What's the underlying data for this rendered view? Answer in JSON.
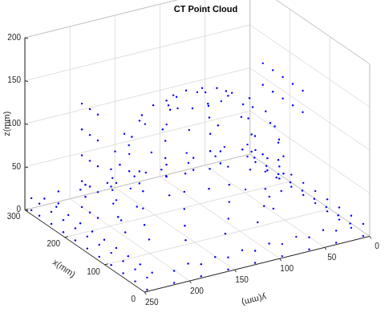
{
  "chart_data": {
    "type": "scatter3d",
    "title": "CT Point Cloud",
    "x_label": "x(mm)",
    "y_label": "y(mm)",
    "z_label": "z(mm)",
    "xlim": [
      0,
      300
    ],
    "ylim": [
      0,
      250
    ],
    "zlim": [
      0,
      200
    ],
    "xticks": [
      0,
      100,
      200,
      300
    ],
    "yticks": [
      0,
      50,
      100,
      150,
      200,
      250
    ],
    "zticks": [
      0,
      50,
      100,
      150,
      200
    ],
    "grid": true,
    "color": "#0000ff",
    "marker": "point",
    "points": [
      [
        5,
        5,
        0
      ],
      [
        35,
        5,
        0
      ],
      [
        65,
        5,
        0
      ],
      [
        95,
        5,
        0
      ],
      [
        125,
        5,
        0
      ],
      [
        155,
        5,
        0
      ],
      [
        185,
        5,
        0
      ],
      [
        215,
        5,
        0
      ],
      [
        245,
        5,
        0
      ],
      [
        275,
        5,
        0
      ],
      [
        295,
        5,
        0
      ],
      [
        5,
        245,
        0
      ],
      [
        35,
        245,
        0
      ],
      [
        65,
        245,
        0
      ],
      [
        95,
        245,
        0
      ],
      [
        125,
        245,
        0
      ],
      [
        155,
        245,
        0
      ],
      [
        185,
        245,
        0
      ],
      [
        215,
        245,
        0
      ],
      [
        245,
        245,
        0
      ],
      [
        275,
        245,
        0
      ],
      [
        295,
        245,
        0
      ],
      [
        5,
        35,
        0
      ],
      [
        5,
        65,
        0
      ],
      [
        5,
        95,
        0
      ],
      [
        5,
        125,
        0
      ],
      [
        5,
        155,
        0
      ],
      [
        5,
        185,
        0
      ],
      [
        5,
        215,
        0
      ],
      [
        295,
        35,
        0
      ],
      [
        295,
        65,
        0
      ],
      [
        295,
        95,
        0
      ],
      [
        295,
        125,
        0
      ],
      [
        295,
        155,
        0
      ],
      [
        295,
        185,
        0
      ],
      [
        295,
        215,
        0
      ],
      [
        5,
        5,
        14
      ],
      [
        35,
        5,
        14
      ],
      [
        65,
        5,
        14
      ],
      [
        95,
        5,
        14
      ],
      [
        125,
        5,
        14
      ],
      [
        155,
        5,
        14
      ],
      [
        185,
        5,
        14
      ],
      [
        215,
        5,
        14
      ],
      [
        245,
        5,
        14
      ],
      [
        275,
        5,
        14
      ],
      [
        295,
        5,
        14
      ],
      [
        5,
        245,
        14
      ],
      [
        35,
        245,
        14
      ],
      [
        65,
        245,
        14
      ],
      [
        95,
        245,
        14
      ],
      [
        125,
        245,
        14
      ],
      [
        155,
        245,
        14
      ],
      [
        185,
        245,
        14
      ],
      [
        215,
        245,
        14
      ],
      [
        245,
        245,
        14
      ],
      [
        275,
        245,
        14
      ],
      [
        295,
        245,
        14
      ],
      [
        5,
        35,
        14
      ],
      [
        5,
        65,
        14
      ],
      [
        5,
        95,
        14
      ],
      [
        5,
        125,
        14
      ],
      [
        5,
        155,
        14
      ],
      [
        5,
        185,
        14
      ],
      [
        5,
        215,
        14
      ],
      [
        295,
        35,
        14
      ],
      [
        295,
        65,
        14
      ],
      [
        295,
        95,
        14
      ],
      [
        295,
        125,
        14
      ],
      [
        295,
        155,
        14
      ],
      [
        295,
        185,
        14
      ],
      [
        295,
        215,
        14
      ],
      [
        15,
        15,
        14
      ],
      [
        45,
        15,
        14
      ],
      [
        75,
        15,
        14
      ],
      [
        105,
        15,
        14
      ],
      [
        135,
        15,
        14
      ],
      [
        165,
        15,
        14
      ],
      [
        195,
        15,
        14
      ],
      [
        225,
        15,
        14
      ],
      [
        255,
        15,
        14
      ],
      [
        285,
        15,
        14
      ],
      [
        15,
        235,
        14
      ],
      [
        45,
        235,
        14
      ],
      [
        75,
        235,
        14
      ],
      [
        105,
        235,
        14
      ],
      [
        135,
        235,
        14
      ],
      [
        165,
        235,
        14
      ],
      [
        195,
        235,
        14
      ],
      [
        225,
        235,
        14
      ],
      [
        255,
        235,
        14
      ],
      [
        285,
        235,
        14
      ],
      [
        15,
        45,
        14
      ],
      [
        15,
        75,
        14
      ],
      [
        15,
        105,
        14
      ],
      [
        15,
        135,
        14
      ],
      [
        15,
        165,
        14
      ],
      [
        15,
        195,
        14
      ],
      [
        285,
        45,
        14
      ],
      [
        285,
        75,
        14
      ],
      [
        285,
        105,
        14
      ],
      [
        285,
        135,
        14
      ],
      [
        285,
        165,
        14
      ],
      [
        285,
        195,
        14
      ],
      [
        220,
        125,
        10
      ],
      [
        211,
        165,
        10
      ],
      [
        185,
        194,
        10
      ],
      [
        150,
        205,
        10
      ],
      [
        115,
        194,
        10
      ],
      [
        89,
        165,
        10
      ],
      [
        80,
        125,
        10
      ],
      [
        89,
        85,
        10
      ],
      [
        115,
        56,
        10
      ],
      [
        150,
        45,
        10
      ],
      [
        185,
        56,
        10
      ],
      [
        211,
        85,
        10
      ],
      [
        228,
        125,
        30
      ],
      [
        218,
        169,
        30
      ],
      [
        189,
        201,
        30
      ],
      [
        150,
        213,
        30
      ],
      [
        111,
        201,
        30
      ],
      [
        82,
        169,
        30
      ],
      [
        72,
        125,
        30
      ],
      [
        82,
        81,
        30
      ],
      [
        111,
        49,
        30
      ],
      [
        150,
        37,
        30
      ],
      [
        189,
        49,
        30
      ],
      [
        218,
        81,
        30
      ],
      [
        230,
        125,
        50
      ],
      [
        219,
        170,
        50
      ],
      [
        190,
        203,
        50
      ],
      [
        150,
        215,
        50
      ],
      [
        110,
        203,
        50
      ],
      [
        81,
        170,
        50
      ],
      [
        70,
        125,
        50
      ],
      [
        81,
        80,
        50
      ],
      [
        110,
        47,
        50
      ],
      [
        150,
        35,
        50
      ],
      [
        190,
        47,
        50
      ],
      [
        219,
        80,
        50
      ],
      [
        230,
        125,
        70
      ],
      [
        219,
        170,
        70
      ],
      [
        190,
        203,
        70
      ],
      [
        150,
        215,
        70
      ],
      [
        110,
        203,
        70
      ],
      [
        81,
        170,
        70
      ],
      [
        70,
        125,
        70
      ],
      [
        81,
        80,
        70
      ],
      [
        110,
        47,
        70
      ],
      [
        150,
        35,
        70
      ],
      [
        190,
        47,
        70
      ],
      [
        219,
        80,
        70
      ],
      [
        227,
        125,
        90
      ],
      [
        217,
        168,
        90
      ],
      [
        189,
        199,
        90
      ],
      [
        150,
        211,
        90
      ],
      [
        112,
        199,
        90
      ],
      [
        83,
        168,
        90
      ],
      [
        73,
        125,
        90
      ],
      [
        83,
        82,
        90
      ],
      [
        112,
        51,
        90
      ],
      [
        150,
        39,
        90
      ],
      [
        189,
        51,
        90
      ],
      [
        217,
        82,
        90
      ],
      [
        218,
        125,
        110
      ],
      [
        209,
        163,
        110
      ],
      [
        184,
        191,
        110
      ],
      [
        150,
        201,
        110
      ],
      [
        116,
        191,
        110
      ],
      [
        91,
        163,
        110
      ],
      [
        82,
        125,
        110
      ],
      [
        91,
        87,
        110
      ],
      [
        116,
        59,
        110
      ],
      [
        150,
        49,
        110
      ],
      [
        184,
        59,
        110
      ],
      [
        209,
        87,
        110
      ],
      [
        202,
        125,
        130
      ],
      [
        195,
        154,
        130
      ],
      [
        176,
        175,
        130
      ],
      [
        150,
        183,
        130
      ],
      [
        124,
        175,
        130
      ],
      [
        105,
        154,
        130
      ],
      [
        98,
        125,
        130
      ],
      [
        105,
        96,
        130
      ],
      [
        124,
        75,
        130
      ],
      [
        150,
        67,
        130
      ],
      [
        176,
        75,
        130
      ],
      [
        195,
        96,
        130
      ],
      [
        178,
        125,
        145
      ],
      [
        174,
        141,
        145
      ],
      [
        164,
        153,
        145
      ],
      [
        150,
        157,
        145
      ],
      [
        136,
        153,
        145
      ],
      [
        126,
        141,
        145
      ],
      [
        122,
        125,
        145
      ],
      [
        126,
        109,
        145
      ],
      [
        136,
        97,
        145
      ],
      [
        150,
        93,
        145
      ],
      [
        164,
        97,
        145
      ],
      [
        174,
        109,
        145
      ],
      [
        150,
        125,
        152
      ],
      [
        100,
        30,
        120
      ],
      [
        125,
        30,
        120
      ],
      [
        150,
        30,
        120
      ],
      [
        175,
        30,
        120
      ],
      [
        200,
        30,
        120
      ],
      [
        100,
        30,
        145
      ],
      [
        125,
        30,
        145
      ],
      [
        150,
        30,
        145
      ],
      [
        175,
        30,
        145
      ],
      [
        200,
        30,
        145
      ],
      [
        230,
        200,
        0
      ],
      [
        250,
        200,
        0
      ],
      [
        270,
        200,
        0
      ],
      [
        230,
        200,
        30
      ],
      [
        250,
        200,
        30
      ],
      [
        270,
        200,
        30
      ],
      [
        230,
        200,
        60
      ],
      [
        250,
        200,
        60
      ],
      [
        270,
        200,
        60
      ],
      [
        230,
        200,
        90
      ],
      [
        250,
        200,
        90
      ],
      [
        270,
        200,
        90
      ],
      [
        230,
        200,
        120
      ],
      [
        250,
        200,
        120
      ],
      [
        270,
        200,
        120
      ]
    ]
  }
}
